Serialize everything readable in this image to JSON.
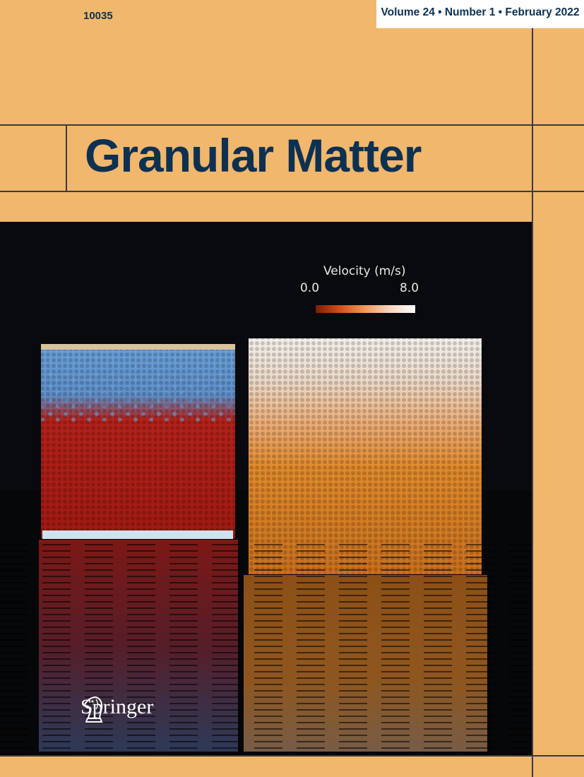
{
  "cover": {
    "journal_id": "10035",
    "issue_info": "Volume 24 • Number 1 • February 2022",
    "title": "Granular Matter",
    "publisher": "Springer"
  },
  "figure": {
    "legend": {
      "title": "Velocity (m/s)",
      "min_label": "0.0",
      "max_label": "8.0"
    }
  },
  "colors": {
    "background": "#f0b76d",
    "title": "#0d3152",
    "rules": "#3a3a44",
    "particle_red": "#b81c12",
    "particle_blue": "#6aa3dc",
    "particle_orange": "#e07a1e"
  },
  "icons": {
    "publisher_logo": "knight-chess-piece-icon"
  }
}
